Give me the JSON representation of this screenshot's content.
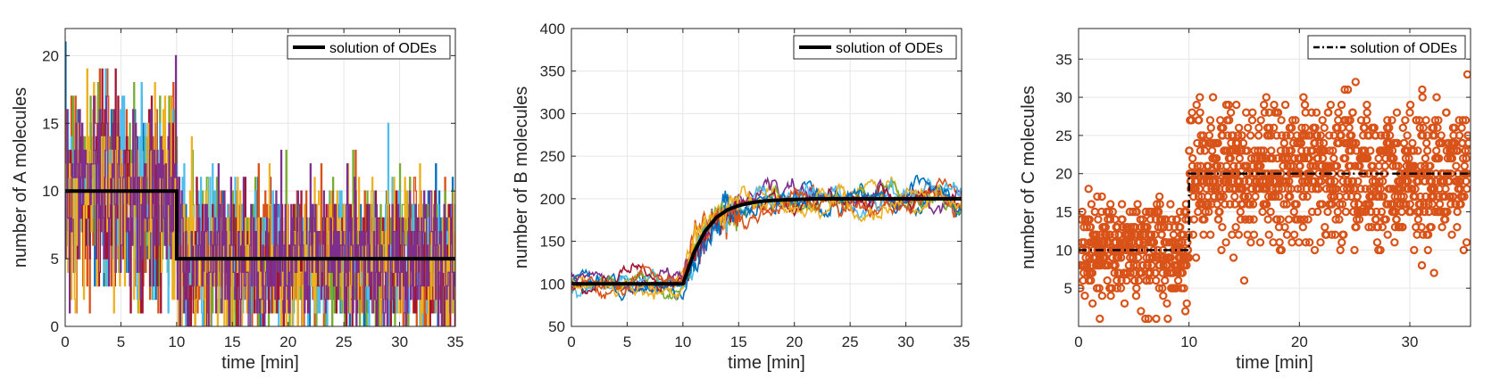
{
  "chart_data": [
    {
      "type": "line",
      "xlabel": "time [min]",
      "ylabel": "number of A molecules",
      "xlim": [
        0,
        35
      ],
      "ylim": [
        0,
        22
      ],
      "xticks": [
        0,
        5,
        10,
        15,
        20,
        25,
        30,
        35
      ],
      "yticks": [
        0,
        5,
        10,
        15,
        20
      ],
      "grid": true,
      "legend": {
        "position": "top-right",
        "entries": [
          "solution of ODEs"
        ]
      },
      "stochastic_traces": {
        "style": "many-colored step traces",
        "colors": [
          "#0072BD",
          "#D95319",
          "#EDB120",
          "#7E2F8E",
          "#77AC30",
          "#4DBEEE",
          "#A2142F"
        ],
        "segments": [
          {
            "x": [
              0,
              10
            ],
            "mean": 10,
            "min": 1,
            "max": 22
          },
          {
            "x": [
              10,
              35
            ],
            "mean": 5,
            "min": 0,
            "max": 15
          }
        ]
      },
      "series": [
        {
          "name": "solution of ODEs",
          "style": "solid",
          "color": "#000000",
          "x": [
            0,
            10,
            10,
            35
          ],
          "y": [
            10,
            10,
            5,
            5
          ]
        }
      ]
    },
    {
      "type": "line",
      "xlabel": "time [min]",
      "ylabel": "number of B molecules",
      "xlim": [
        0,
        35
      ],
      "ylim": [
        50,
        400
      ],
      "xticks": [
        0,
        5,
        10,
        15,
        20,
        25,
        30,
        35
      ],
      "yticks": [
        50,
        100,
        150,
        200,
        250,
        300,
        350,
        400
      ],
      "grid": true,
      "legend": {
        "position": "top-right",
        "entries": [
          "solution of ODEs"
        ]
      },
      "stochastic_traces": {
        "style": "10 colored trajectories",
        "colors": [
          "#0072BD",
          "#D95319",
          "#EDB120",
          "#7E2F8E",
          "#77AC30",
          "#4DBEEE",
          "#A2142F"
        ],
        "count": 10,
        "spread": 22
      },
      "series": [
        {
          "name": "solution of ODEs",
          "style": "solid",
          "color": "#000000",
          "x": [
            0,
            10,
            11,
            12,
            13,
            14,
            15,
            16,
            17,
            18,
            20,
            22,
            25,
            30,
            35
          ],
          "y": [
            100,
            100,
            137,
            162,
            178,
            187,
            192,
            195,
            197,
            198,
            199,
            200,
            200,
            200,
            200
          ]
        }
      ]
    },
    {
      "type": "scatter",
      "xlabel": "time [min]",
      "ylabel": "number of C molecules",
      "xlim": [
        0,
        35.5
      ],
      "ylim": [
        0,
        39
      ],
      "xticks": [
        0,
        10,
        20,
        30
      ],
      "yticks": [
        5,
        10,
        15,
        20,
        25,
        30,
        35
      ],
      "grid": true,
      "legend": {
        "position": "top-right",
        "entries": [
          "solution of ODEs"
        ]
      },
      "marker_color": "#D95319",
      "scatter_model": {
        "segments": [
          {
            "x": [
              0,
              10
            ],
            "mean": 10,
            "min": 1,
            "max": 20
          },
          {
            "x": [
              10,
              35.5
            ],
            "mean": 20,
            "min": 5,
            "max": 39
          }
        ],
        "points_per_minute": 38
      },
      "series": [
        {
          "name": "solution of ODEs",
          "style": "dash-dot",
          "color": "#000000",
          "x": [
            0,
            10,
            10,
            35.5
          ],
          "y": [
            10,
            10,
            20,
            20
          ]
        }
      ]
    }
  ]
}
